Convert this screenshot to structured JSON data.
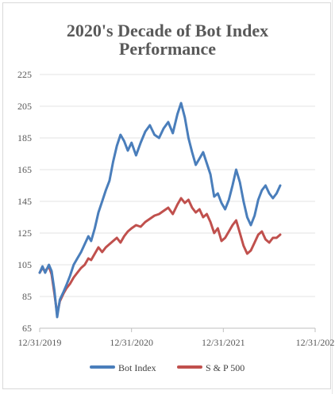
{
  "chart_data": {
    "type": "line",
    "title_lines": [
      "2020's Decade of Bot Index",
      "Performance"
    ],
    "xlabel": "",
    "ylabel": "",
    "x_ticks": [
      "12/31/2019",
      "12/31/2020",
      "12/31/2021",
      "12/31/202"
    ],
    "y_ticks": [
      65,
      85,
      105,
      125,
      145,
      165,
      185,
      205,
      225
    ],
    "ylim": [
      65,
      225
    ],
    "x_range_years": [
      2020.0,
      2023.0
    ],
    "grid": "horizontal",
    "legend_position": "bottom",
    "series": [
      {
        "name": "Bot Index",
        "color": "#4a7ebb",
        "points": [
          [
            2020.0,
            100
          ],
          [
            2020.03,
            104
          ],
          [
            2020.06,
            100
          ],
          [
            2020.1,
            105
          ],
          [
            2020.13,
            101
          ],
          [
            2020.16,
            89
          ],
          [
            2020.19,
            72
          ],
          [
            2020.22,
            83
          ],
          [
            2020.26,
            88
          ],
          [
            2020.29,
            92
          ],
          [
            2020.33,
            98
          ],
          [
            2020.37,
            105
          ],
          [
            2020.41,
            109
          ],
          [
            2020.45,
            113
          ],
          [
            2020.49,
            118
          ],
          [
            2020.53,
            123
          ],
          [
            2020.56,
            120
          ],
          [
            2020.6,
            128
          ],
          [
            2020.64,
            138
          ],
          [
            2020.68,
            145
          ],
          [
            2020.72,
            152
          ],
          [
            2020.76,
            158
          ],
          [
            2020.8,
            170
          ],
          [
            2020.84,
            180
          ],
          [
            2020.88,
            187
          ],
          [
            2020.92,
            183
          ],
          [
            2020.96,
            177
          ],
          [
            2021.0,
            182
          ],
          [
            2021.05,
            174
          ],
          [
            2021.1,
            182
          ],
          [
            2021.15,
            189
          ],
          [
            2021.2,
            193
          ],
          [
            2021.25,
            187
          ],
          [
            2021.3,
            185
          ],
          [
            2021.35,
            191
          ],
          [
            2021.4,
            195
          ],
          [
            2021.45,
            188
          ],
          [
            2021.5,
            200
          ],
          [
            2021.54,
            207
          ],
          [
            2021.58,
            198
          ],
          [
            2021.62,
            185
          ],
          [
            2021.66,
            176
          ],
          [
            2021.7,
            168
          ],
          [
            2021.74,
            172
          ],
          [
            2021.78,
            176
          ],
          [
            2021.82,
            169
          ],
          [
            2021.86,
            162
          ],
          [
            2021.9,
            148
          ],
          [
            2021.94,
            150
          ],
          [
            2021.98,
            144
          ],
          [
            2022.02,
            140
          ],
          [
            2022.06,
            146
          ],
          [
            2022.1,
            155
          ],
          [
            2022.14,
            165
          ],
          [
            2022.18,
            157
          ],
          [
            2022.22,
            145
          ],
          [
            2022.26,
            135
          ],
          [
            2022.3,
            130
          ],
          [
            2022.34,
            136
          ],
          [
            2022.38,
            146
          ],
          [
            2022.42,
            152
          ],
          [
            2022.46,
            155
          ],
          [
            2022.5,
            150
          ],
          [
            2022.54,
            147
          ],
          [
            2022.58,
            150
          ],
          [
            2022.62,
            155
          ]
        ]
      },
      {
        "name": "S & P 500",
        "color": "#c0504d",
        "points": [
          [
            2020.0,
            100
          ],
          [
            2020.03,
            103
          ],
          [
            2020.06,
            101
          ],
          [
            2020.1,
            104
          ],
          [
            2020.13,
            99
          ],
          [
            2020.16,
            87
          ],
          [
            2020.19,
            74
          ],
          [
            2020.22,
            82
          ],
          [
            2020.26,
            87
          ],
          [
            2020.29,
            90
          ],
          [
            2020.33,
            93
          ],
          [
            2020.37,
            97
          ],
          [
            2020.41,
            100
          ],
          [
            2020.45,
            103
          ],
          [
            2020.49,
            105
          ],
          [
            2020.53,
            109
          ],
          [
            2020.56,
            108
          ],
          [
            2020.6,
            112
          ],
          [
            2020.64,
            116
          ],
          [
            2020.68,
            113
          ],
          [
            2020.72,
            116
          ],
          [
            2020.76,
            118
          ],
          [
            2020.8,
            120
          ],
          [
            2020.84,
            122
          ],
          [
            2020.88,
            119
          ],
          [
            2020.92,
            123
          ],
          [
            2020.96,
            126
          ],
          [
            2021.0,
            128
          ],
          [
            2021.05,
            130
          ],
          [
            2021.1,
            129
          ],
          [
            2021.15,
            132
          ],
          [
            2021.2,
            134
          ],
          [
            2021.25,
            136
          ],
          [
            2021.3,
            137
          ],
          [
            2021.35,
            139
          ],
          [
            2021.4,
            141
          ],
          [
            2021.45,
            137
          ],
          [
            2021.5,
            143
          ],
          [
            2021.54,
            147
          ],
          [
            2021.58,
            144
          ],
          [
            2021.62,
            146
          ],
          [
            2021.66,
            141
          ],
          [
            2021.7,
            138
          ],
          [
            2021.74,
            140
          ],
          [
            2021.78,
            135
          ],
          [
            2021.82,
            137
          ],
          [
            2021.86,
            132
          ],
          [
            2021.9,
            125
          ],
          [
            2021.94,
            128
          ],
          [
            2021.98,
            120
          ],
          [
            2022.02,
            122
          ],
          [
            2022.06,
            126
          ],
          [
            2022.1,
            130
          ],
          [
            2022.14,
            133
          ],
          [
            2022.18,
            125
          ],
          [
            2022.22,
            117
          ],
          [
            2022.26,
            112
          ],
          [
            2022.3,
            114
          ],
          [
            2022.34,
            119
          ],
          [
            2022.38,
            124
          ],
          [
            2022.42,
            126
          ],
          [
            2022.46,
            121
          ],
          [
            2022.5,
            119
          ],
          [
            2022.54,
            122
          ],
          [
            2022.58,
            122
          ],
          [
            2022.62,
            124
          ]
        ]
      }
    ]
  }
}
